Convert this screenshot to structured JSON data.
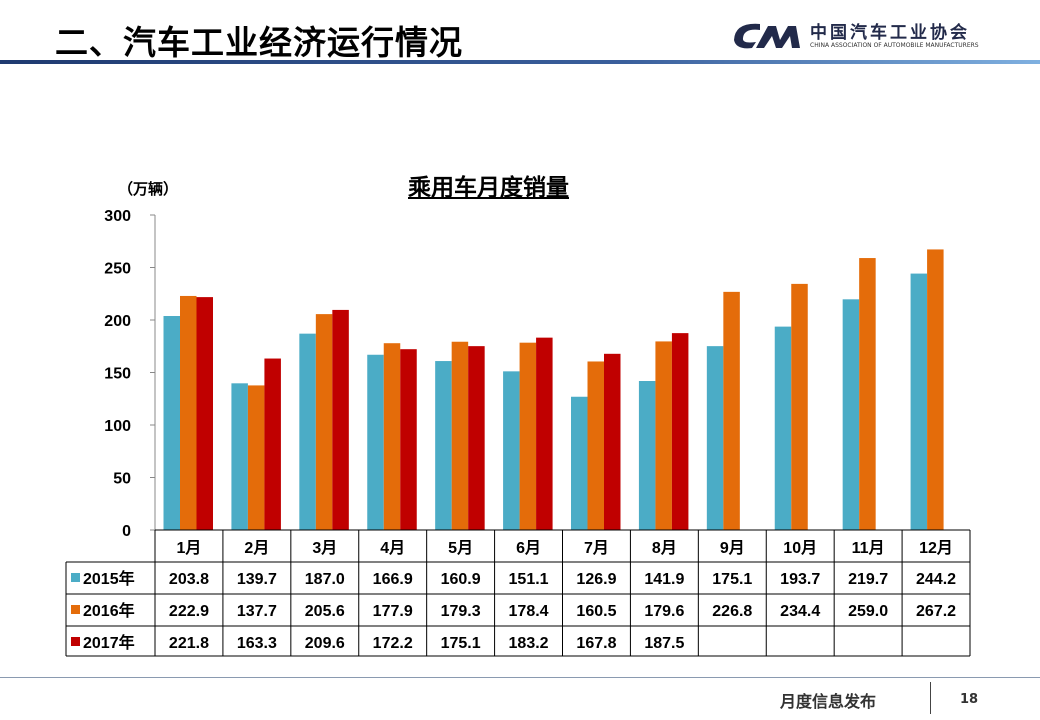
{
  "header": {
    "title": "二、汽车工业经济运行情况",
    "logo_cn": "中国汽车工业协会",
    "logo_en": "CHINA ASSOCIATION OF AUTOMOBILE MANUFACTURERS"
  },
  "footer": {
    "text": "月度信息发布",
    "page": "18"
  },
  "chart_data": {
    "type": "bar",
    "title": "乘用车月度销量",
    "ylabel": "（万辆）",
    "ylim": [
      0,
      300
    ],
    "yticks": [
      0,
      50,
      100,
      150,
      200,
      250,
      300
    ],
    "categories": [
      "1月",
      "2月",
      "3月",
      "4月",
      "5月",
      "6月",
      "7月",
      "8月",
      "9月",
      "10月",
      "11月",
      "12月"
    ],
    "series": [
      {
        "name": "2015年",
        "color": "#4bacc6",
        "values": [
          203.8,
          139.7,
          187.0,
          166.9,
          160.9,
          151.1,
          126.9,
          141.9,
          175.1,
          193.7,
          219.7,
          244.2
        ]
      },
      {
        "name": "2016年",
        "color": "#e46c0a",
        "values": [
          222.9,
          137.7,
          205.6,
          177.9,
          179.3,
          178.4,
          160.5,
          179.6,
          226.8,
          234.4,
          259.0,
          267.2
        ]
      },
      {
        "name": "2017年",
        "color": "#c00000",
        "values": [
          221.8,
          163.3,
          209.6,
          172.2,
          175.1,
          183.2,
          167.8,
          187.5,
          null,
          null,
          null,
          null
        ]
      }
    ],
    "grid": false,
    "legend": "data-table"
  }
}
